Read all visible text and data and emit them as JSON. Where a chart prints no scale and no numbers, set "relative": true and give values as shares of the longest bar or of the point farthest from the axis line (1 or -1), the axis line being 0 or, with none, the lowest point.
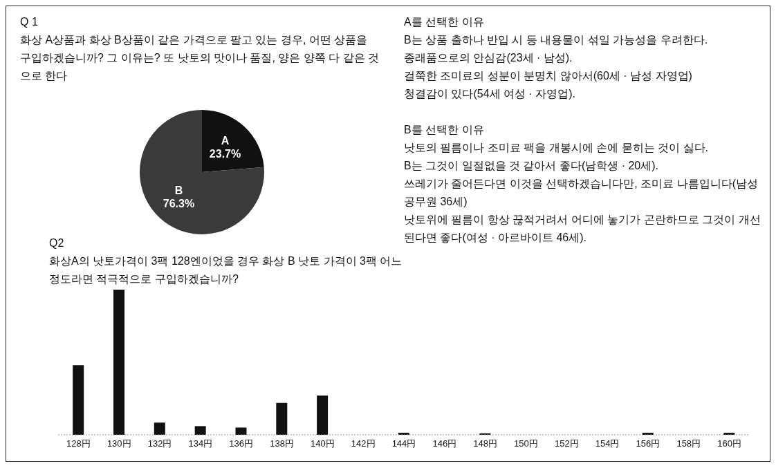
{
  "chart_data": [
    {
      "type": "pie",
      "title": "Q 1",
      "subtitle": "화상 A상품과 화상 B상품이 같은 가격으로 팔고 있는 경우, 어떤 상품을 구입하겠습니까? 그 이유는? 또 낫토의 맛이나 품질, 양은 양쪽 다 같은 것으로 한다",
      "categories": [
        "A",
        "B"
      ],
      "values": [
        23.7,
        76.3
      ],
      "colors": [
        "#111111",
        "#3a3a3a"
      ],
      "value_labels": [
        "23.7%",
        "76.3%"
      ],
      "annotations": [
        "A를 선택한 이유",
        "B는 상품 출하나 반입 시 등 내용물이 섞일 가능성을 우려한다.",
        "종래품으로의 안심감(23세 · 남성).",
        "걸쭉한 조미료의 성분이 분명치 않아서(60세 · 남성 자영업)",
        "청결감이 있다(54세 여성 · 자영업).",
        "B를 선택한 이유",
        "낫토의 필름이나 조미료 팩을 개봉시에 손에 묻히는 것이 싫다.",
        "B는 그것이 일절없을 것 같아서 좋다(남학생 · 20세).",
        "쓰레기가 줄어든다면 이것을 선택하겠습니다만, 조미료 나름입니다(남성 공무원 36세)",
        "낫토위에 필름이 항상 끊적거려서 어디에 놓기가 곤란하므로 그것이 개선 된다면 좋다(여성 · 아르바이트 46세)."
      ]
    },
    {
      "type": "bar",
      "title": "Q2",
      "subtitle": "화상A의 낫토가격이 3팩 128엔이었을 경우 화상 B 낫토 가격이 3팩 어느정도라면 적극적으로 구입하겠습니까?",
      "relative": true,
      "color": "#111111",
      "categories": [
        "128円",
        "130円",
        "132円",
        "134円",
        "136円",
        "138円",
        "140円",
        "142円",
        "144円",
        "146円",
        "148円",
        "150円",
        "152円",
        "154円",
        "156円",
        "158円",
        "160円"
      ],
      "values": [
        0.48,
        1,
        0.084,
        0.06,
        0.05,
        0.22,
        0.27,
        0,
        0.014,
        0,
        0.01,
        0,
        0,
        0,
        0.014,
        0,
        0.014
      ]
    }
  ]
}
